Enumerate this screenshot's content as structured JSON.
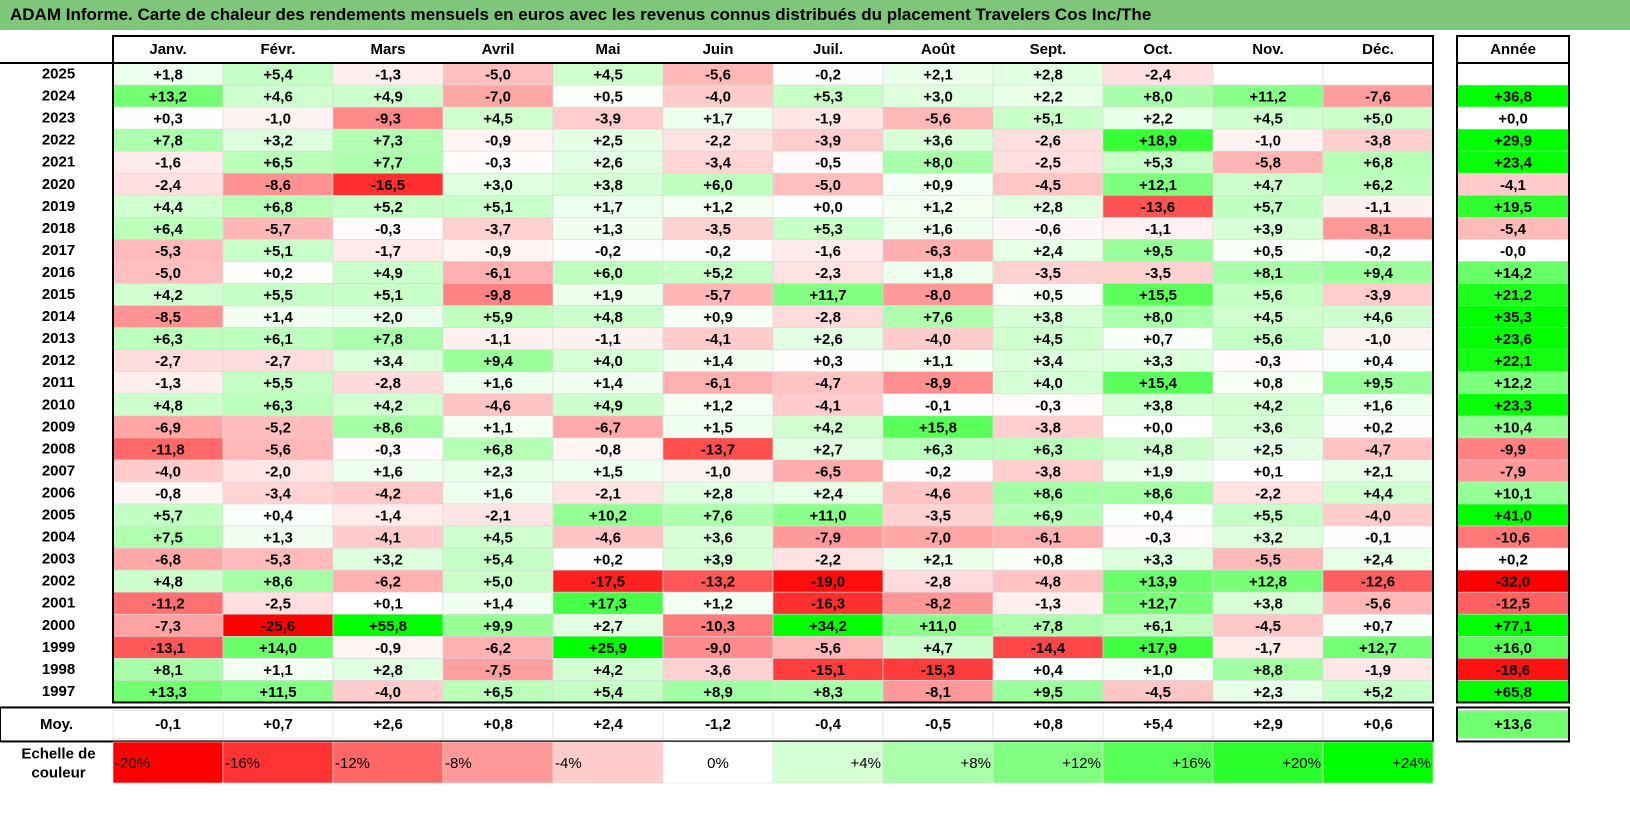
{
  "title": "ADAM Informe. Carte de chaleur des rendements mensuels en euros avec les revenus connus distribués du placement Travelers Cos Inc/The",
  "chart_data": {
    "type": "heatmap",
    "months": [
      "Janv.",
      "Févr.",
      "Mars",
      "Avril",
      "Mai",
      "Juin",
      "Juil.",
      "Août",
      "Sept.",
      "Oct.",
      "Nov.",
      "Déc."
    ],
    "year_column_header": "Année",
    "average_label": "Moy.",
    "rows": [
      {
        "year": "2025",
        "values": [
          "+1,8",
          "+5,4",
          "-1,3",
          "-5,0",
          "+4,5",
          "-5,6",
          "-0,2",
          "+2,1",
          "+2,8",
          "-2,4",
          "",
          ""
        ],
        "annual": ""
      },
      {
        "year": "2024",
        "values": [
          "+13,2",
          "+4,6",
          "+4,9",
          "-7,0",
          "+0,5",
          "-4,0",
          "+5,3",
          "+3,0",
          "+2,2",
          "+8,0",
          "+11,2",
          "-7,6"
        ],
        "annual": "+36,8"
      },
      {
        "year": "2023",
        "values": [
          "+0,3",
          "-1,0",
          "-9,3",
          "+4,5",
          "-3,9",
          "+1,7",
          "-1,9",
          "-5,6",
          "+5,1",
          "+2,2",
          "+4,5",
          "+5,0"
        ],
        "annual": "+0,0"
      },
      {
        "year": "2022",
        "values": [
          "+7,8",
          "+3,2",
          "+7,3",
          "-0,9",
          "+2,5",
          "-2,2",
          "-3,9",
          "+3,6",
          "-2,6",
          "+18,9",
          "-1,0",
          "-3,8"
        ],
        "annual": "+29,9"
      },
      {
        "year": "2021",
        "values": [
          "-1,6",
          "+6,5",
          "+7,7",
          "-0,3",
          "+2,6",
          "-3,4",
          "-0,5",
          "+8,0",
          "-2,5",
          "+5,3",
          "-5,8",
          "+6,8"
        ],
        "annual": "+23,4"
      },
      {
        "year": "2020",
        "values": [
          "-2,4",
          "-8,6",
          "-16,5",
          "+3,0",
          "+3,8",
          "+6,0",
          "-5,0",
          "+0,9",
          "-4,5",
          "+12,1",
          "+4,7",
          "+6,2"
        ],
        "annual": "-4,1"
      },
      {
        "year": "2019",
        "values": [
          "+4,4",
          "+6,8",
          "+5,2",
          "+5,1",
          "+1,7",
          "+1,2",
          "+0,0",
          "+1,2",
          "+2,8",
          "-13,6",
          "+5,7",
          "-1,1"
        ],
        "annual": "+19,5"
      },
      {
        "year": "2018",
        "values": [
          "+6,4",
          "-5,7",
          "-0,3",
          "-3,7",
          "+1,3",
          "-3,5",
          "+5,3",
          "+1,6",
          "-0,6",
          "-1,1",
          "+3,9",
          "-8,1"
        ],
        "annual": "-5,4"
      },
      {
        "year": "2017",
        "values": [
          "-5,3",
          "+5,1",
          "-1,7",
          "-0,9",
          "-0,2",
          "-0,2",
          "-1,6",
          "-6,3",
          "+2,4",
          "+9,5",
          "+0,5",
          "-0,2"
        ],
        "annual": "-0,0"
      },
      {
        "year": "2016",
        "values": [
          "-5,0",
          "+0,2",
          "+4,9",
          "-6,1",
          "+6,0",
          "+5,2",
          "-2,3",
          "+1,8",
          "-3,5",
          "-3,5",
          "+8,1",
          "+9,4"
        ],
        "annual": "+14,2"
      },
      {
        "year": "2015",
        "values": [
          "+4,2",
          "+5,5",
          "+5,1",
          "-9,8",
          "+1,9",
          "-5,7",
          "+11,7",
          "-8,0",
          "+0,5",
          "+15,5",
          "+5,6",
          "-3,9"
        ],
        "annual": "+21,2"
      },
      {
        "year": "2014",
        "values": [
          "-8,5",
          "+1,4",
          "+2,0",
          "+5,9",
          "+4,8",
          "+0,9",
          "-2,8",
          "+7,6",
          "+3,8",
          "+8,0",
          "+4,5",
          "+4,6"
        ],
        "annual": "+35,3"
      },
      {
        "year": "2013",
        "values": [
          "+6,3",
          "+6,1",
          "+7,8",
          "-1,1",
          "-1,1",
          "-4,1",
          "+2,6",
          "-4,0",
          "+4,5",
          "+0,7",
          "+5,6",
          "-1,0"
        ],
        "annual": "+23,6"
      },
      {
        "year": "2012",
        "values": [
          "-2,7",
          "-2,7",
          "+3,4",
          "+9,4",
          "+4,0",
          "+1,4",
          "+0,3",
          "+1,1",
          "+3,4",
          "+3,3",
          "-0,3",
          "+0,4"
        ],
        "annual": "+22,1"
      },
      {
        "year": "2011",
        "values": [
          "-1,3",
          "+5,5",
          "-2,8",
          "+1,6",
          "+1,4",
          "-6,1",
          "-4,7",
          "-8,9",
          "+4,0",
          "+15,4",
          "+0,8",
          "+9,5"
        ],
        "annual": "+12,2"
      },
      {
        "year": "2010",
        "values": [
          "+4,8",
          "+6,3",
          "+4,2",
          "-4,6",
          "+4,9",
          "+1,2",
          "-4,1",
          "-0,1",
          "-0,3",
          "+3,8",
          "+4,2",
          "+1,6"
        ],
        "annual": "+23,3"
      },
      {
        "year": "2009",
        "values": [
          "-6,9",
          "-5,2",
          "+8,6",
          "+1,1",
          "-6,7",
          "+1,5",
          "+4,2",
          "+15,8",
          "-3,8",
          "+0,0",
          "+3,6",
          "+0,2"
        ],
        "annual": "+10,4"
      },
      {
        "year": "2008",
        "values": [
          "-11,8",
          "-5,6",
          "-0,3",
          "+6,8",
          "-0,8",
          "-13,7",
          "+2,7",
          "+6,3",
          "+6,3",
          "+4,8",
          "+2,5",
          "-4,7"
        ],
        "annual": "-9,9"
      },
      {
        "year": "2007",
        "values": [
          "-4,0",
          "-2,0",
          "+1,6",
          "+2,3",
          "+1,5",
          "-1,0",
          "-6,5",
          "-0,2",
          "-3,8",
          "+1,9",
          "+0,1",
          "+2,1"
        ],
        "annual": "-7,9"
      },
      {
        "year": "2006",
        "values": [
          "-0,8",
          "-3,4",
          "-4,2",
          "+1,6",
          "-2,1",
          "+2,8",
          "+2,4",
          "-4,6",
          "+8,6",
          "+8,6",
          "-2,2",
          "+4,4"
        ],
        "annual": "+10,1"
      },
      {
        "year": "2005",
        "values": [
          "+5,7",
          "+0,4",
          "-1,4",
          "-2,1",
          "+10,2",
          "+7,6",
          "+11,0",
          "-3,5",
          "+6,9",
          "+0,4",
          "+5,5",
          "-4,0"
        ],
        "annual": "+41,0"
      },
      {
        "year": "2004",
        "values": [
          "+7,5",
          "+1,3",
          "-4,1",
          "+4,5",
          "-4,6",
          "+3,6",
          "-7,9",
          "-7,0",
          "-6,1",
          "-0,3",
          "+3,2",
          "-0,1"
        ],
        "annual": "-10,6"
      },
      {
        "year": "2003",
        "values": [
          "-6,8",
          "-5,3",
          "+3,2",
          "+5,4",
          "+0,2",
          "+3,9",
          "-2,2",
          "+2,1",
          "+0,8",
          "+3,3",
          "-5,5",
          "+2,4"
        ],
        "annual": "+0,2"
      },
      {
        "year": "2002",
        "values": [
          "+4,8",
          "+8,6",
          "-6,2",
          "+5,0",
          "-17,5",
          "-13,2",
          "-19,0",
          "-2,8",
          "-4,8",
          "+13,9",
          "+12,8",
          "-12,6"
        ],
        "annual": "-32,0"
      },
      {
        "year": "2001",
        "values": [
          "-11,2",
          "-2,5",
          "+0,1",
          "+1,4",
          "+17,3",
          "+1,2",
          "-16,3",
          "-8,2",
          "-1,3",
          "+12,7",
          "+3,8",
          "-5,6"
        ],
        "annual": "-12,5"
      },
      {
        "year": "2000",
        "values": [
          "-7,3",
          "-25,6",
          "+55,8",
          "+9,9",
          "+2,7",
          "-10,3",
          "+34,2",
          "+11,0",
          "+7,8",
          "+6,1",
          "-4,5",
          "+0,7"
        ],
        "annual": "+77,1"
      },
      {
        "year": "1999",
        "values": [
          "-13,1",
          "+14,0",
          "-0,9",
          "-6,2",
          "+25,9",
          "-9,0",
          "-5,6",
          "+4,7",
          "-14,4",
          "+17,9",
          "-1,7",
          "+12,7"
        ],
        "annual": "+16,0"
      },
      {
        "year": "1998",
        "values": [
          "+8,1",
          "+1,1",
          "+2,8",
          "-7,5",
          "+4,2",
          "-3,6",
          "-15,1",
          "-15,3",
          "+0,4",
          "+1,0",
          "+8,8",
          "-1,9"
        ],
        "annual": "-18,6"
      },
      {
        "year": "1997",
        "values": [
          "+13,3",
          "+11,5",
          "-4,0",
          "+6,5",
          "+5,4",
          "+8,9",
          "+8,3",
          "-8,1",
          "+9,5",
          "-4,5",
          "+2,3",
          "+5,2"
        ],
        "annual": "+65,8"
      }
    ],
    "averages": {
      "values": [
        "-0,1",
        "+0,7",
        "+2,6",
        "+0,8",
        "+2,4",
        "-1,2",
        "-0,4",
        "-0,5",
        "+0,8",
        "+5,4",
        "+2,9",
        "+0,6"
      ],
      "annual": "+13,6"
    },
    "scale": {
      "label": "Echelle de couleur",
      "steps": [
        {
          "label": "-20%",
          "value": -20
        },
        {
          "label": "-16%",
          "value": -16
        },
        {
          "label": "-12%",
          "value": -12
        },
        {
          "label": "-8%",
          "value": -8
        },
        {
          "label": "-4%",
          "value": -4
        },
        {
          "label": "0%",
          "value": 0
        },
        {
          "label": "+4%",
          "value": 4
        },
        {
          "label": "+8%",
          "value": 8
        },
        {
          "label": "+12%",
          "value": 12
        },
        {
          "label": "+16%",
          "value": 16
        },
        {
          "label": "+20%",
          "value": 20
        },
        {
          "label": "+24%",
          "value": 24
        }
      ]
    },
    "colors": {
      "negative": "#ff0000",
      "neutral": "#ffffff",
      "positive": "#00ff00",
      "title_bar": "#7dc67a"
    }
  }
}
